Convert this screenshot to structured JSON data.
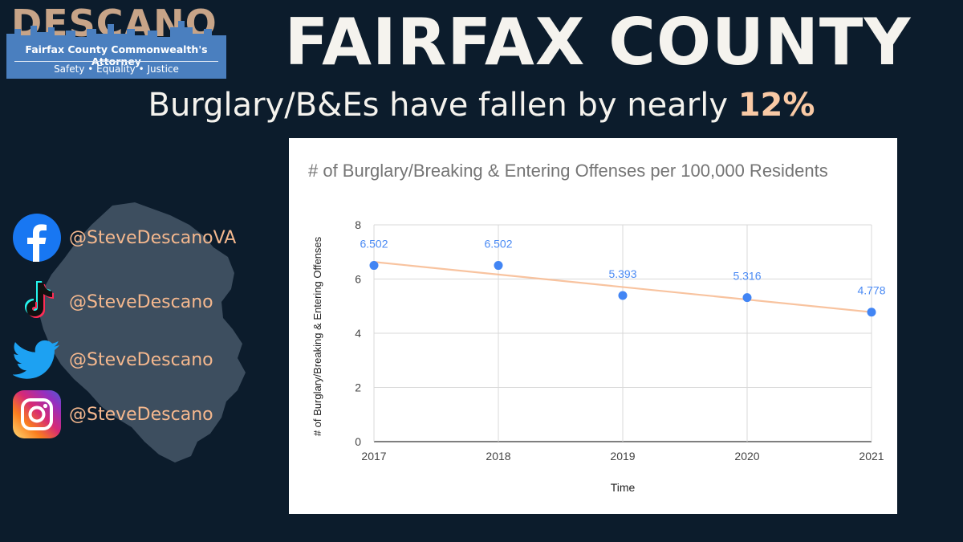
{
  "logo": {
    "wordmark": "DESCANO",
    "subtitle": "Fairfax County Commonwealth's Attorney",
    "tagline": "Safety • Equality • Justice"
  },
  "header": {
    "title": "FAIRFAX COUNTY",
    "subtitle_prefix": "Burglary/B&Es have fallen by nearly ",
    "subtitle_highlight": "12%"
  },
  "social": [
    {
      "icon": "facebook-icon",
      "handle": "@SteveDescanoVA"
    },
    {
      "icon": "tiktok-icon",
      "handle": "@SteveDescano"
    },
    {
      "icon": "twitter-icon",
      "handle": "@SteveDescano"
    },
    {
      "icon": "instagram-icon",
      "handle": "@SteveDescano"
    }
  ],
  "colors": {
    "background": "#0c1c2c",
    "accent": "#f9c9a5",
    "point": "#4285f4",
    "trendline": "#f7b98f"
  },
  "chart_data": {
    "type": "scatter",
    "title": "# of Burglary/Breaking & Entering Offenses per 100,000 Residents",
    "xlabel": "Time",
    "ylabel": "# of Burglary/Breaking & Entering Offenses",
    "x": [
      2017,
      2018,
      2019,
      2020,
      2021
    ],
    "values": [
      6.502,
      6.502,
      5.393,
      5.316,
      4.778
    ],
    "data_labels": [
      "6.502",
      "6.502",
      "5.393",
      "5.316",
      "4.778"
    ],
    "xticks": [
      "2017",
      "2018",
      "2019",
      "2020",
      "2021"
    ],
    "yticks": [
      "0",
      "2",
      "4",
      "6",
      "8"
    ],
    "ylim": [
      0,
      8
    ],
    "xlim": [
      2017,
      2021
    ],
    "trendline": {
      "start": 6.63,
      "end": 4.78
    },
    "grid": true,
    "legend": "none"
  }
}
